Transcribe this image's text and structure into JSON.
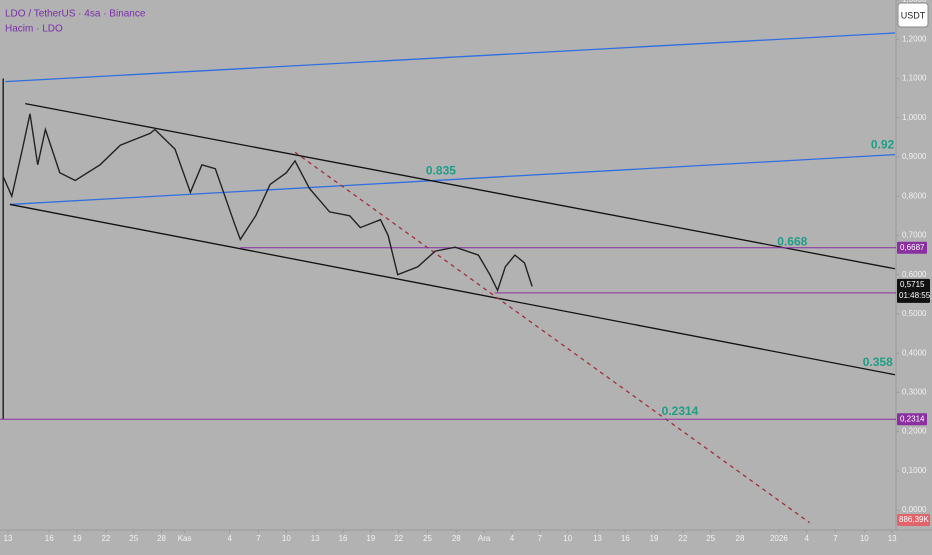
{
  "header": {
    "symbol": "LDO / TetherUS · 4sa · Binance",
    "volume_label": "Hacim · LDO",
    "currency_button": "USDT"
  },
  "chart_data": {
    "type": "line",
    "color": "#222222",
    "x": [
      -0.5,
      0.4,
      1.5,
      2.3,
      3.1,
      3.9,
      5.4,
      7,
      9.6,
      11.7,
      14.8,
      15.3,
      17.4,
      19,
      20.2,
      21.6,
      22.6,
      23.6,
      24.2,
      25.8,
      27.3,
      29,
      29.9,
      31.4,
      33.5,
      35.6,
      36.7,
      38.8,
      39.6,
      40.6,
      42.7,
      44.5,
      46.6,
      49,
      50.2,
      51,
      51.8,
      52.8,
      53.8,
      54.6
    ],
    "values": [
      0.85,
      0.8,
      0.92,
      1.01,
      0.88,
      0.97,
      0.86,
      0.84,
      0.88,
      0.93,
      0.96,
      0.97,
      0.92,
      0.81,
      0.88,
      0.87,
      0.8,
      0.73,
      0.69,
      0.75,
      0.83,
      0.86,
      0.89,
      0.82,
      0.76,
      0.75,
      0.72,
      0.74,
      0.7,
      0.6,
      0.62,
      0.66,
      0.67,
      0.65,
      0.6,
      0.56,
      0.62,
      0.65,
      0.63,
      0.57
    ],
    "xlim": [
      -0.83,
      92.5
    ],
    "ylim": [
      -0.0507,
      1.3
    ],
    "yticks": [
      {
        "value": 0,
        "label": "0,0000"
      },
      {
        "value": 0.1,
        "label": "0,1000"
      },
      {
        "value": 0.2,
        "label": "0,2000"
      },
      {
        "value": 0.3,
        "label": "0,3000"
      },
      {
        "value": 0.4,
        "label": "0,4000"
      },
      {
        "value": 0.5,
        "label": "0,5000"
      },
      {
        "value": 0.6,
        "label": "0,6000"
      },
      {
        "value": 0.7,
        "label": "0,7000"
      },
      {
        "value": 0.8,
        "label": "0,8000"
      },
      {
        "value": 0.9,
        "label": "0,9000"
      },
      {
        "value": 1.0,
        "label": "1,0000"
      },
      {
        "value": 1.1,
        "label": "1,1000"
      },
      {
        "value": 1.2,
        "label": "1,2000"
      },
      {
        "value": 1.3,
        "label": "1,3000"
      }
    ],
    "xticks": [
      {
        "value": 0,
        "label": "13"
      },
      {
        "value": 4.3,
        "label": "16"
      },
      {
        "value": 7.2,
        "label": "19"
      },
      {
        "value": 10.2,
        "label": "22"
      },
      {
        "value": 13.1,
        "label": "25"
      },
      {
        "value": 16,
        "label": "28"
      },
      {
        "value": 18.4,
        "label": "Kas"
      },
      {
        "value": 23.1,
        "label": "4"
      },
      {
        "value": 26.1,
        "label": "7"
      },
      {
        "value": 29,
        "label": "10"
      },
      {
        "value": 32,
        "label": "13"
      },
      {
        "value": 34.9,
        "label": "16"
      },
      {
        "value": 37.8,
        "label": "19"
      },
      {
        "value": 40.7,
        "label": "22"
      },
      {
        "value": 43.7,
        "label": "25"
      },
      {
        "value": 46.7,
        "label": "28"
      },
      {
        "value": 49.6,
        "label": "Ara"
      },
      {
        "value": 52.5,
        "label": "4"
      },
      {
        "value": 55.4,
        "label": "7"
      },
      {
        "value": 58.3,
        "label": "10"
      },
      {
        "value": 61.4,
        "label": "13"
      },
      {
        "value": 64.3,
        "label": "16"
      },
      {
        "value": 67.3,
        "label": "19"
      },
      {
        "value": 70.3,
        "label": "22"
      },
      {
        "value": 73.2,
        "label": "25"
      },
      {
        "value": 76.25,
        "label": "28"
      },
      {
        "value": 80.3,
        "label": "2026"
      },
      {
        "value": 83.2,
        "label": "4"
      },
      {
        "value": 86.2,
        "label": "7"
      },
      {
        "value": 89.2,
        "label": "10"
      },
      {
        "value": 92.1,
        "label": "13"
      }
    ],
    "trendlines": [
      {
        "color": "#2f6fe0",
        "dashed": false,
        "x": [
          -0.3,
          92.4
        ],
        "y": [
          1.092,
          1.216
        ]
      },
      {
        "color": "#2f6fe0",
        "dashed": false,
        "x": [
          0.2,
          92.4
        ],
        "y": [
          0.779,
          0.906
        ]
      },
      {
        "color": "#111111",
        "dashed": false,
        "x": [
          1.8,
          92.4
        ],
        "y": [
          1.036,
          0.615
        ]
      },
      {
        "color": "#111111",
        "dashed": false,
        "x": [
          0.2,
          92.4
        ],
        "y": [
          0.779,
          0.345
        ]
      },
      {
        "color": "#a0303a",
        "dashed": true,
        "x": [
          29.9,
          83.5
        ],
        "y": [
          0.912,
          -0.032
        ]
      },
      {
        "color": "#111111",
        "dashed": false,
        "x": [
          -0.5,
          -0.5
        ],
        "y": [
          1.1,
          0.2314
        ]
      }
    ],
    "levels": [
      {
        "value": 0.6687,
        "label": "0,6687",
        "start": 24.2
      },
      {
        "value": 0.5536,
        "label": "0,5536",
        "start": 50.7
      },
      {
        "value": 0.2314,
        "label": "0,2314",
        "start": -0.83
      }
    ],
    "level_color": "#8a2fa0",
    "annotations": [
      {
        "text": "0.835",
        "x": 45.1,
        "y": 0.863
      },
      {
        "text": "0.92",
        "x": 91.1,
        "y": 0.93
      },
      {
        "text": "0.668",
        "x": 81.7,
        "y": 0.682
      },
      {
        "text": "0.358",
        "x": 90.6,
        "y": 0.375
      },
      {
        "text": "0.2314",
        "x": 70,
        "y": 0.251
      }
    ],
    "current_price": {
      "value": 0.5715,
      "label": "0,5715",
      "countdown": "01:48:55"
    },
    "volume_tag": "886,39K"
  }
}
